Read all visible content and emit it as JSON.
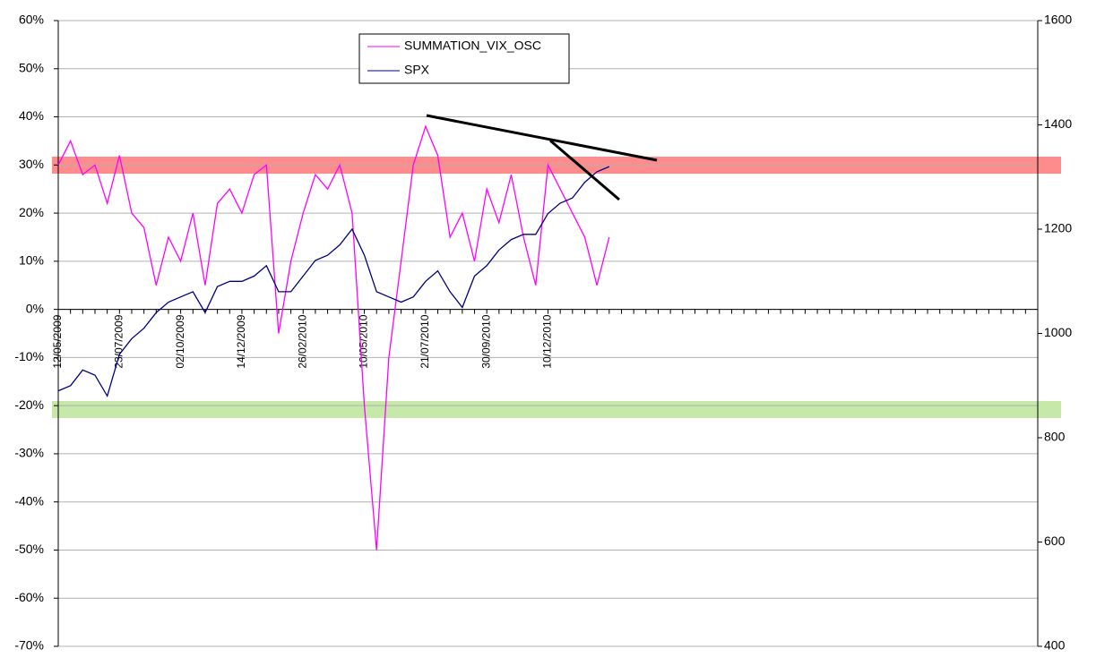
{
  "chart_data": {
    "type": "line",
    "categories": [
      "12/05/2009",
      null,
      null,
      null,
      null,
      "23/07/2009",
      null,
      null,
      null,
      null,
      "02/10/2009",
      null,
      null,
      null,
      null,
      "14/12/2009",
      null,
      null,
      null,
      null,
      "26/02/2010",
      null,
      null,
      null,
      null,
      "10/05/2010",
      null,
      null,
      null,
      null,
      "21/07/2010",
      null,
      null,
      null,
      null,
      "30/09/2010",
      null,
      null,
      null,
      null,
      "10/12/2010",
      null,
      null,
      null,
      null,
      null,
      null,
      null,
      null,
      null,
      null,
      null,
      null,
      null,
      null,
      null,
      null,
      null,
      null,
      null,
      null,
      null,
      null,
      null,
      null,
      null,
      null,
      null,
      null,
      null,
      null,
      null,
      null,
      null,
      null,
      null,
      null,
      null,
      null,
      null
    ],
    "series": [
      {
        "name": "SUMMATION_VIX_OSC",
        "color": "#ff00ff",
        "values": [
          30,
          35,
          28,
          30,
          22,
          32,
          20,
          17,
          5,
          15,
          10,
          20,
          5,
          22,
          25,
          20,
          28,
          30,
          -5,
          10,
          20,
          28,
          25,
          30,
          20,
          -20,
          -50,
          -10,
          10,
          30,
          38,
          32,
          15,
          20,
          10,
          25,
          18,
          28,
          15,
          5,
          30,
          25,
          20,
          15,
          5,
          15,
          null,
          null,
          null,
          null,
          null,
          null,
          null,
          null,
          null,
          null,
          null,
          null,
          null,
          null,
          null,
          null,
          null,
          null,
          null,
          null,
          null,
          null,
          null,
          null,
          null,
          null,
          null,
          null,
          null,
          null,
          null,
          null,
          null,
          null
        ]
      },
      {
        "name": "SPX",
        "color": "#000080",
        "axis": "y2",
        "values": [
          890,
          900,
          930,
          920,
          880,
          960,
          990,
          1010,
          1040,
          1060,
          1070,
          1080,
          1040,
          1090,
          1100,
          1100,
          1110,
          1130,
          1080,
          1080,
          1110,
          1140,
          1150,
          1170,
          1200,
          1150,
          1080,
          1070,
          1060,
          1070,
          1100,
          1120,
          1080,
          1050,
          1110,
          1130,
          1160,
          1180,
          1190,
          1190,
          1230,
          1250,
          1260,
          1290,
          1310,
          1320,
          null,
          null,
          null,
          null,
          null,
          null,
          null,
          null,
          null,
          null,
          null,
          null,
          null,
          null,
          null,
          null,
          null,
          null,
          null,
          null,
          null,
          null,
          null,
          null,
          null,
          null,
          null,
          null,
          null,
          null,
          null,
          null,
          null,
          null
        ]
      }
    ],
    "ylim": [
      -70,
      60
    ],
    "yticks": [
      {
        "value": -70,
        "label": "-70%"
      },
      {
        "value": -60,
        "label": "-60%"
      },
      {
        "value": -50,
        "label": "-50%"
      },
      {
        "value": -40,
        "label": "-40%"
      },
      {
        "value": -30,
        "label": "-30%"
      },
      {
        "value": -20,
        "label": "-20%"
      },
      {
        "value": -10,
        "label": "-10%"
      },
      {
        "value": 0,
        "label": "0%"
      },
      {
        "value": 10,
        "label": "10%"
      },
      {
        "value": 20,
        "label": "20%"
      },
      {
        "value": 30,
        "label": "30%"
      },
      {
        "value": 40,
        "label": "40%"
      },
      {
        "value": 50,
        "label": "50%"
      },
      {
        "value": 60,
        "label": "60%"
      }
    ],
    "y2lim": [
      400,
      1600
    ],
    "y2ticks": [
      400,
      600,
      800,
      1000,
      1200,
      1400,
      1600
    ],
    "grid": true
  }
}
